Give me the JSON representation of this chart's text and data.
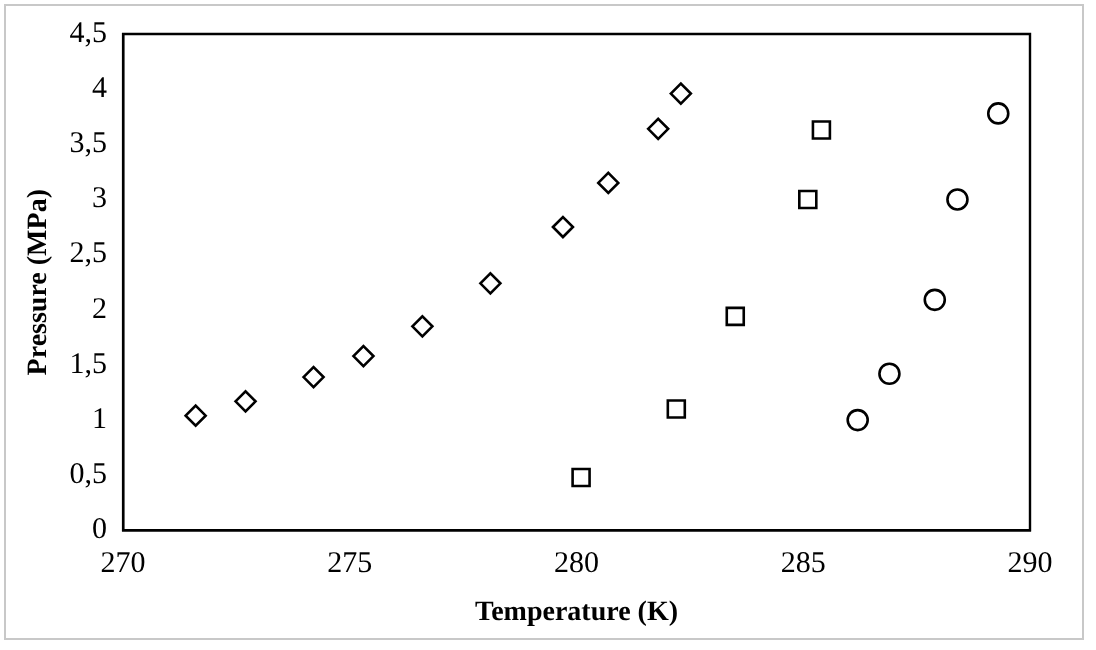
{
  "chart_data": {
    "type": "scatter",
    "xlabel": "Temperature (K)",
    "ylabel": "Pressure (MPa)",
    "xlim": [
      270,
      290
    ],
    "xticks": [
      270,
      275,
      280,
      285,
      290
    ],
    "ylim": [
      0,
      4.5
    ],
    "yticks": [
      0,
      {
        "value": 0.5,
        "label": "0,5"
      },
      1,
      {
        "value": 1.5,
        "label": "1,5"
      },
      2,
      {
        "value": 2.5,
        "label": "2,5"
      },
      3,
      {
        "value": 3.5,
        "label": "3,5"
      },
      4,
      {
        "value": 4.5,
        "label": "4,5"
      }
    ],
    "grid": false,
    "legend": false,
    "series": [
      {
        "color": "#000000",
        "marker": "diamond",
        "x": [
          271.6,
          272.7,
          274.2,
          275.3,
          276.6,
          278.1,
          279.7,
          280.7,
          281.8,
          282.3
        ],
        "values": [
          1.04,
          1.17,
          1.39,
          1.58,
          1.85,
          2.24,
          2.75,
          3.15,
          3.64,
          3.96
        ]
      },
      {
        "color": "#000000",
        "marker": "square",
        "x": [
          280.1,
          282.2,
          283.5,
          285.1,
          285.4
        ],
        "values": [
          0.48,
          1.1,
          1.94,
          3.0,
          3.63
        ]
      },
      {
        "color": "#000000",
        "marker": "circle",
        "x": [
          286.2,
          286.9,
          287.9,
          288.4,
          289.3
        ],
        "values": [
          1.0,
          1.42,
          2.09,
          3.0,
          3.78
        ]
      }
    ]
  }
}
